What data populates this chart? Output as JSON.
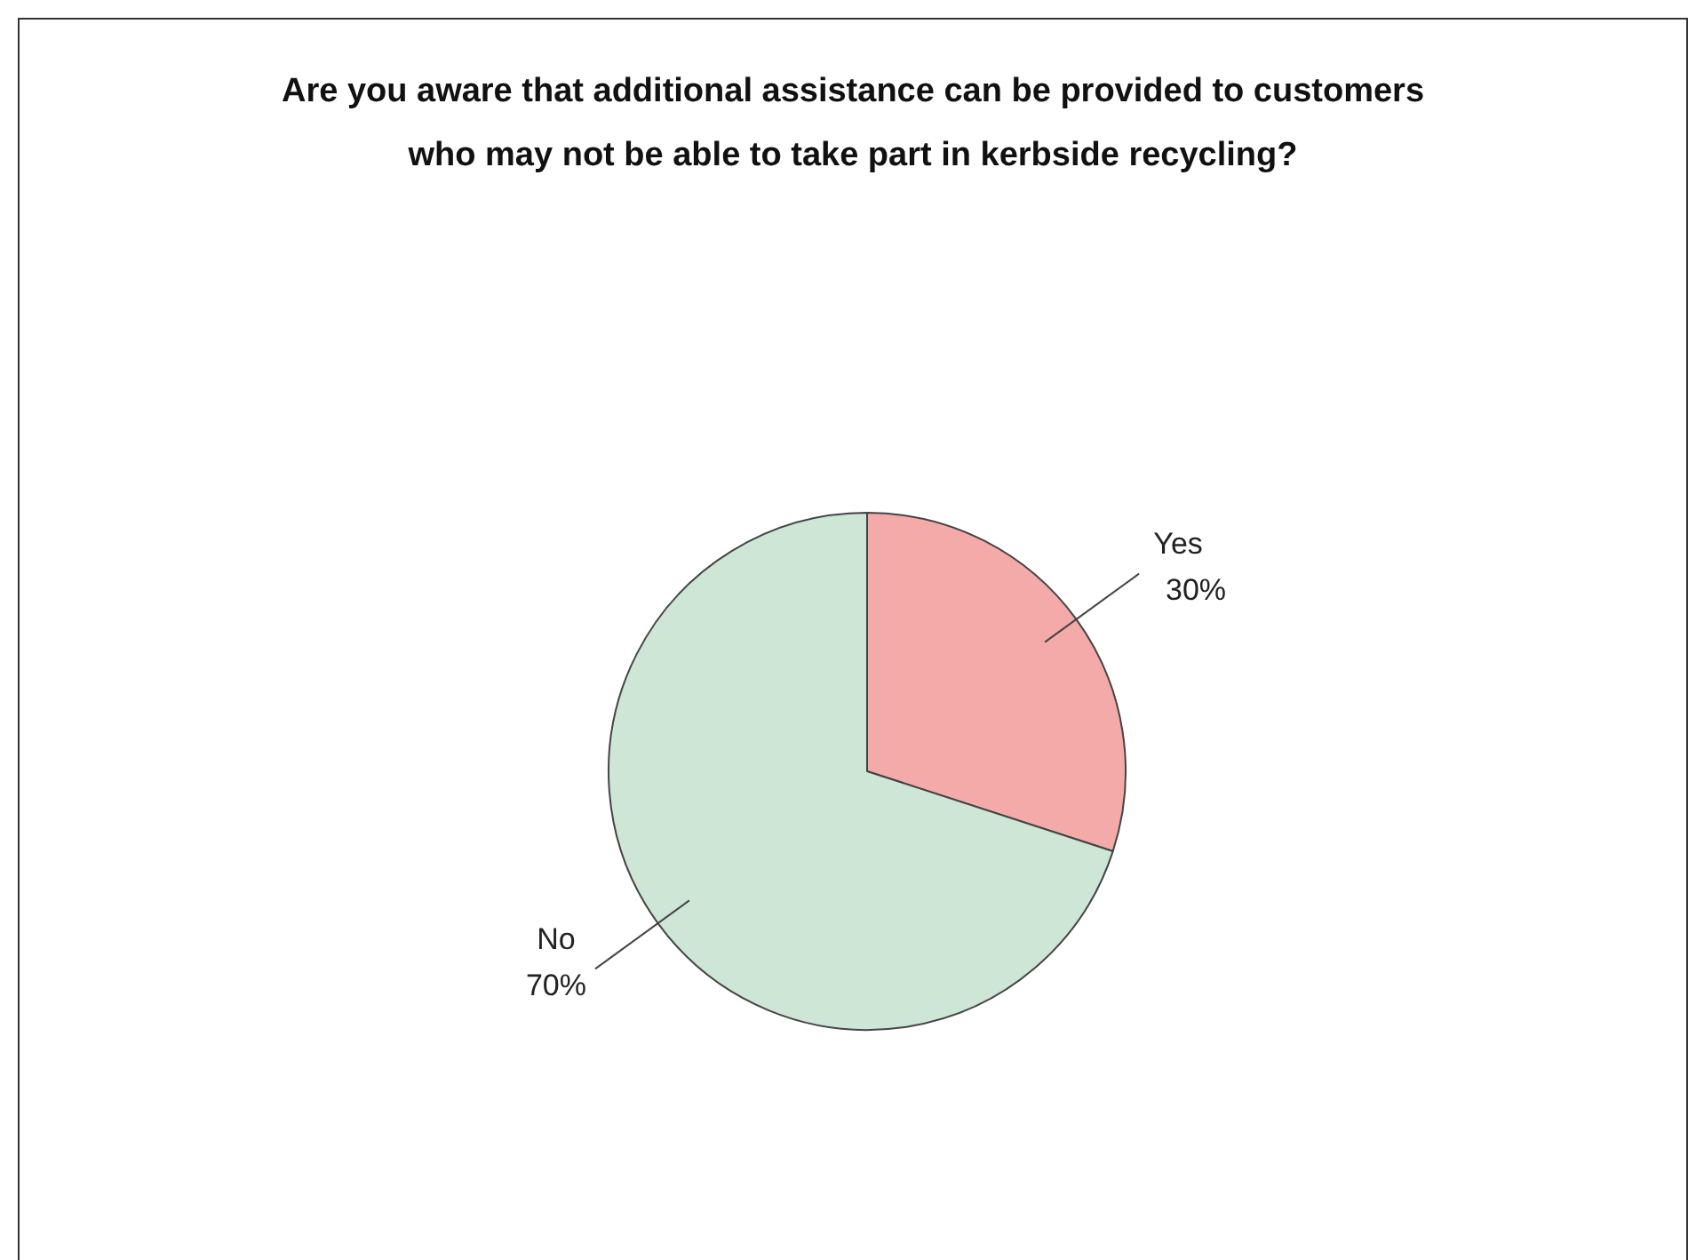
{
  "chart_data": {
    "type": "pie",
    "title": "Are you aware that additional assistance can be provided to customers who may not be able to take part in kerbside recycling?",
    "categories": [
      "Yes",
      "No"
    ],
    "values": [
      30,
      70
    ],
    "value_labels": [
      "30%",
      "70%"
    ],
    "colors": [
      "#f5aaaa",
      "#cde6d6"
    ],
    "legend": false
  }
}
